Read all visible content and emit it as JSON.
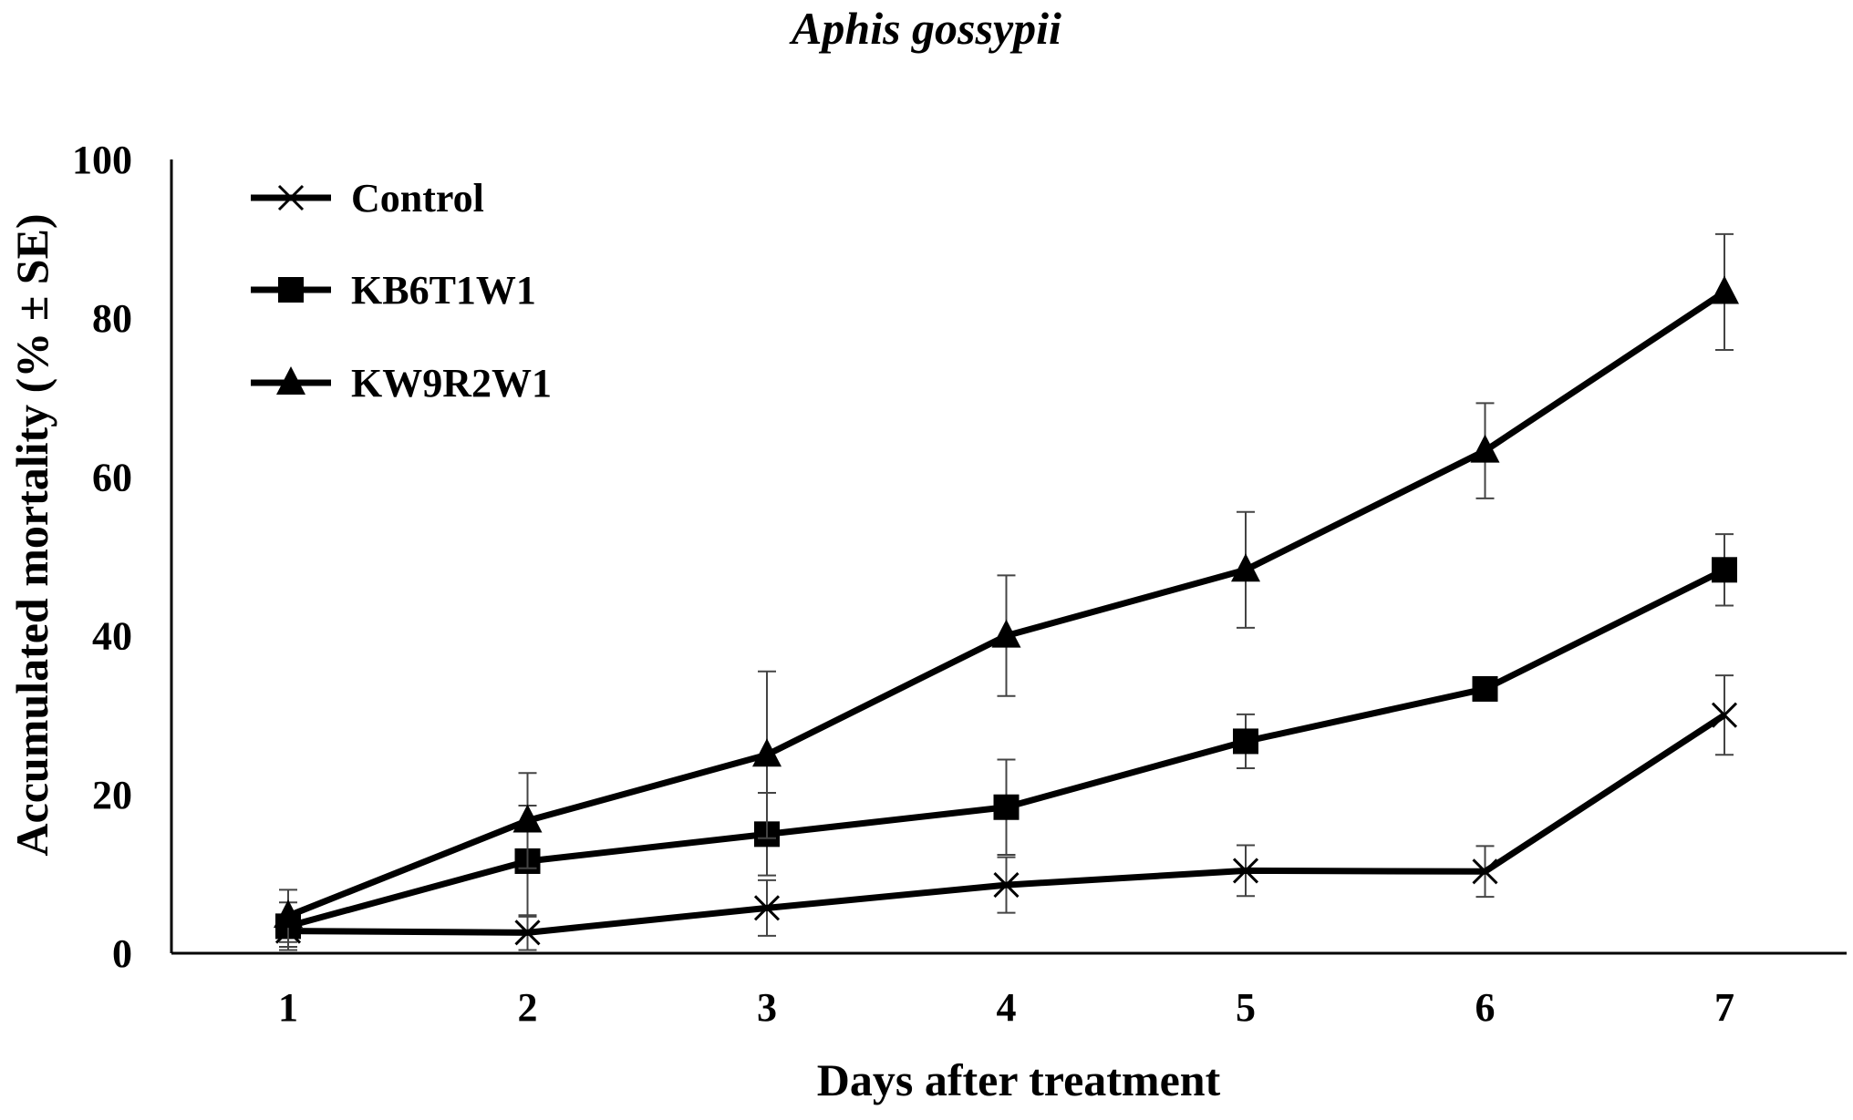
{
  "chart_data": {
    "type": "line",
    "title": "Aphis gossypii",
    "xlabel": "Days after treatment",
    "ylabel": "Accumulated mortality (% ± SE)",
    "x": [
      1,
      2,
      3,
      4,
      5,
      6,
      7
    ],
    "xticks": [
      "1",
      "2",
      "3",
      "4",
      "5",
      "6",
      "7"
    ],
    "ylim": [
      0,
      100
    ],
    "yticks": [
      "0",
      "20",
      "40",
      "60",
      "80",
      "100"
    ],
    "grid": false,
    "legend_position": "top-left",
    "series": [
      {
        "name": "Control",
        "marker": "x",
        "values": [
          2.8,
          2.6,
          5.7,
          8.6,
          10.4,
          10.3,
          30.0
        ],
        "errors": [
          2.0,
          2.2,
          3.5,
          3.5,
          3.2,
          3.2,
          5.0
        ]
      },
      {
        "name": "KB6T1W1",
        "marker": "square",
        "values": [
          3.4,
          11.6,
          15.0,
          18.4,
          26.7,
          33.3,
          48.3
        ],
        "errors": [
          3.0,
          7.0,
          5.2,
          6.0,
          3.4,
          0,
          4.5
        ]
      },
      {
        "name": "KW9R2W1",
        "marker": "triangle",
        "values": [
          4.7,
          16.7,
          25.0,
          40.0,
          48.3,
          63.3,
          83.3
        ],
        "errors": [
          3.3,
          6.0,
          10.5,
          7.6,
          7.3,
          6.0,
          7.3
        ]
      }
    ]
  }
}
